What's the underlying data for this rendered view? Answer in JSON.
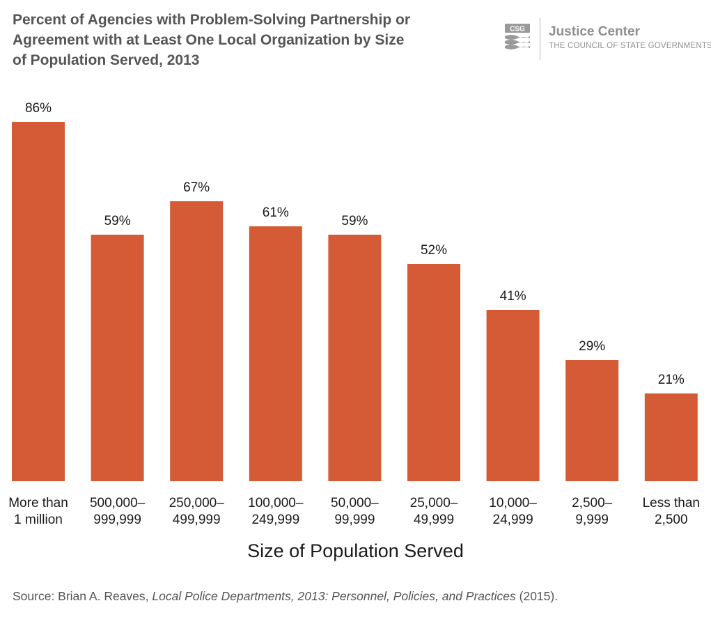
{
  "title": "Percent of Agencies with Problem-Solving Partnership or\nAgreement with  at Least One Local Organization by Size\nof Population Served, 2013",
  "logo": {
    "mark_text": "CSG",
    "name": "Justice Center",
    "subtitle": "THE COUNCIL OF STATE GOVERNMENTS"
  },
  "source": {
    "prefix": "Source: Brian A. Reaves, ",
    "italic": "Local Police Departments, 2013: Personnel, Policies, and Practices",
    "suffix": " (2015)."
  },
  "colors": {
    "bar": "#D45B35",
    "title": "#555555",
    "logo": "#8f8f8f"
  },
  "chart_data": {
    "type": "bar",
    "xlabel": "Size of Population Served",
    "ylabel": "",
    "ylim": [
      0,
      86
    ],
    "grid": false,
    "categories": [
      [
        "More than",
        "1 million"
      ],
      [
        "500,000–",
        "999,999"
      ],
      [
        "250,000–",
        "499,999"
      ],
      [
        "100,000–",
        "249,999"
      ],
      [
        "50,000–",
        "99,999"
      ],
      [
        "25,000–",
        "49,999"
      ],
      [
        "10,000–",
        "24,999"
      ],
      [
        "2,500–",
        "9,999"
      ],
      [
        "Less than",
        "2,500"
      ]
    ],
    "values": [
      86,
      59,
      67,
      61,
      59,
      52,
      41,
      29,
      21
    ],
    "value_labels": [
      "86%",
      "59%",
      "67%",
      "61%",
      "59%",
      "52%",
      "41%",
      "29%",
      "21%"
    ]
  }
}
